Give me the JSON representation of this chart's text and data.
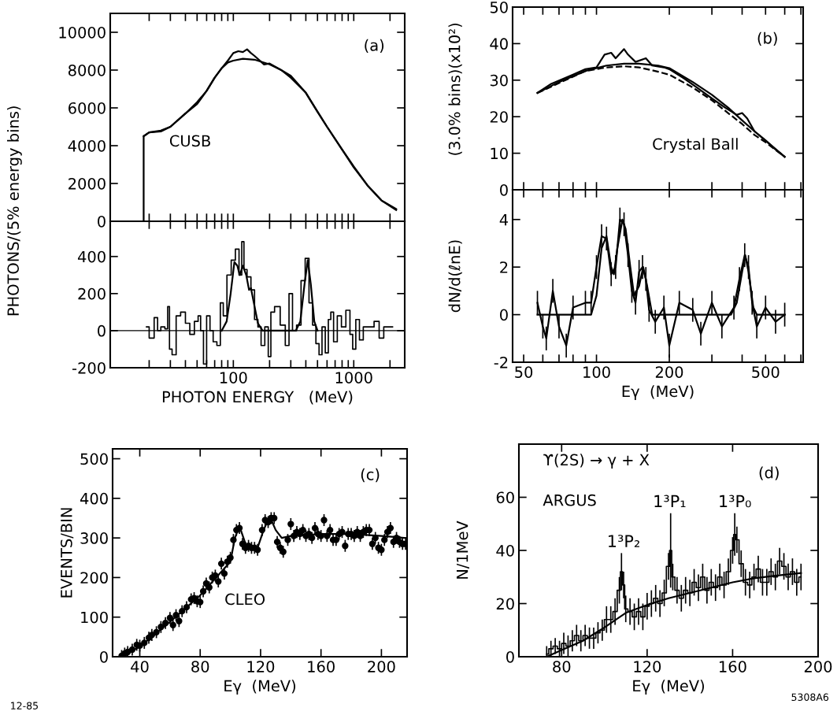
{
  "chart_data": [
    {
      "type": "line",
      "log": "x",
      "xlim": [
        9.5,
        2650
      ],
      "ylim": [
        0,
        11000
      ],
      "tick_labels": "y",
      "xticks": [
        {
          "value": 20,
          "label": null
        },
        {
          "value": 30,
          "label": null
        },
        {
          "value": 40,
          "label": null
        },
        {
          "value": 50,
          "label": null
        },
        {
          "value": 60,
          "label": null
        },
        {
          "value": 70,
          "label": null
        },
        {
          "value": 80,
          "label": null
        },
        {
          "value": 90,
          "label": null
        },
        {
          "value": 100,
          "label": null
        },
        {
          "value": 200,
          "label": null
        },
        {
          "value": 300,
          "label": null
        },
        {
          "value": 400,
          "label": null
        },
        {
          "value": 500,
          "label": null
        },
        {
          "value": 600,
          "label": null
        },
        {
          "value": 700,
          "label": null
        },
        {
          "value": 800,
          "label": null
        },
        {
          "value": 900,
          "label": null
        },
        {
          "value": 1000,
          "label": null
        },
        {
          "value": 2000,
          "label": null
        }
      ],
      "yticks": [
        0,
        2000,
        4000,
        6000,
        8000,
        10000
      ],
      "ylabel": "PHOTONS/(5% energy bins)",
      "annotations": [
        "(a)",
        "CUSB"
      ],
      "series": [
        {
          "color": "#000000",
          "x": [
            18,
            18,
            20,
            25,
            30,
            40,
            50,
            60,
            70,
            80,
            90,
            100,
            110,
            120,
            130,
            140,
            150,
            180,
            200,
            250,
            300,
            400,
            500,
            600,
            800,
            1000,
            1300,
            1700,
            2250
          ],
          "values": [
            0,
            4500,
            4700,
            4800,
            5000,
            5700,
            6200,
            6900,
            7600,
            8100,
            8500,
            8900,
            9000,
            8950,
            9100,
            8900,
            8750,
            8300,
            8350,
            8000,
            7700,
            6800,
            5800,
            5000,
            3800,
            2850,
            1900,
            1100,
            650
          ]
        },
        {
          "color": "#000000",
          "x": [
            18,
            20,
            25,
            30,
            40,
            50,
            60,
            70,
            80,
            90,
            100,
            120,
            150,
            200,
            250,
            300,
            400,
            500,
            600,
            800,
            1000,
            1300,
            1700,
            2250
          ],
          "values": [
            4500,
            4700,
            4750,
            5000,
            5700,
            6300,
            6900,
            7600,
            8100,
            8400,
            8500,
            8600,
            8550,
            8300,
            8000,
            7600,
            6800,
            5800,
            5000,
            3800,
            2900,
            1900,
            1100,
            600
          ]
        }
      ]
    },
    {
      "type": "step",
      "log": "x",
      "xlim": [
        9.5,
        2650
      ],
      "ylim": [
        -200,
        590
      ],
      "xticks": [
        {
          "value": 20,
          "label": null
        },
        {
          "value": 30,
          "label": null
        },
        {
          "value": 40,
          "label": null
        },
        {
          "value": 50,
          "label": null
        },
        {
          "value": 60,
          "label": null
        },
        {
          "value": 70,
          "label": null
        },
        {
          "value": 80,
          "label": null
        },
        {
          "value": 90,
          "label": null
        },
        100,
        {
          "value": 200,
          "label": null
        },
        {
          "value": 300,
          "label": null
        },
        {
          "value": 400,
          "label": null
        },
        {
          "value": 500,
          "label": null
        },
        {
          "value": 600,
          "label": null
        },
        {
          "value": 700,
          "label": null
        },
        {
          "value": 800,
          "label": null
        },
        {
          "value": 900,
          "label": null
        },
        1000,
        {
          "value": 2000,
          "label": null
        }
      ],
      "yticks": [
        -200,
        0,
        200,
        400
      ],
      "xlabel": "PHOTON ENERGY   (MeV)",
      "ref_lines": [
        {
          "axis": "y",
          "value": 0,
          "color": "#000000"
        }
      ],
      "series": [
        {
          "color": "#000000",
          "x": [
            19,
            21,
            23,
            24,
            26,
            28,
            29,
            30,
            32,
            35,
            38,
            42,
            45,
            50,
            52,
            55,
            58,
            62,
            66,
            70,
            76,
            80,
            85,
            92,
            100,
            108,
            115,
            120,
            125,
            135,
            145,
            155,
            165,
            175,
            190,
            200,
            210,
            230,
            260,
            280,
            300,
            320,
            350,
            380,
            410,
            440,
            470,
            500,
            530,
            560,
            600,
            630,
            660,
            700,
            760,
            820,
            900,
            960,
            1000,
            1080,
            1150,
            1250,
            1400,
            1550,
            1700,
            1850,
            2100
          ],
          "values": [
            20,
            -40,
            70,
            0,
            20,
            10,
            130,
            -100,
            -130,
            80,
            100,
            40,
            -20,
            50,
            80,
            0,
            -180,
            80,
            0,
            -60,
            -80,
            150,
            80,
            300,
            380,
            440,
            300,
            480,
            330,
            290,
            220,
            60,
            20,
            -80,
            20,
            -140,
            100,
            130,
            30,
            -80,
            200,
            0,
            30,
            270,
            390,
            150,
            30,
            -70,
            -130,
            20,
            -120,
            60,
            100,
            -60,
            80,
            20,
            110,
            -20,
            -100,
            60,
            -50,
            20,
            20,
            50,
            -40,
            20,
            20
          ]
        },
        {
          "type": "line",
          "color": "#000000",
          "x": [
            80,
            88,
            95,
            102,
            108,
            113,
            120,
            128,
            135,
            140,
            148,
            160,
            175,
            330,
            360,
            390,
            415,
            440,
            470,
            500
          ],
          "values": [
            0,
            50,
            200,
            370,
            350,
            300,
            350,
            300,
            220,
            230,
            150,
            40,
            0,
            0,
            50,
            250,
            380,
            250,
            50,
            0
          ]
        }
      ]
    },
    {
      "type": "line",
      "log": "x",
      "xlim": [
        45,
        715
      ],
      "ylim": [
        0,
        50
      ],
      "tick_labels": "y",
      "xticks": [
        {
          "value": 50,
          "label": null
        },
        {
          "value": 60,
          "label": null
        },
        {
          "value": 70,
          "label": null
        },
        {
          "value": 80,
          "label": null
        },
        {
          "value": 90,
          "label": null
        },
        {
          "value": 100,
          "label": null
        },
        {
          "value": 200,
          "label": null
        },
        {
          "value": 300,
          "label": null
        },
        {
          "value": 400,
          "label": null
        },
        {
          "value": 500,
          "label": null
        },
        {
          "value": 600,
          "label": null
        },
        {
          "value": 700,
          "label": null
        }
      ],
      "yticks": [
        0,
        10,
        20,
        30,
        40,
        50
      ],
      "ylabel": "(3.0% bins)(x10²)",
      "annotations": [
        "(b)",
        "Crystal Ball"
      ],
      "series": [
        {
          "color": "#000000",
          "x": [
            57,
            65,
            80,
            90,
            100,
            108,
            115,
            120,
            130,
            135,
            145,
            160,
            170,
            190,
            200,
            230,
            260,
            300,
            340,
            380,
            400,
            420,
            450,
            500,
            550,
            600
          ],
          "values": [
            26.5,
            29,
            31.5,
            33,
            33.5,
            37,
            37.5,
            36,
            38.5,
            37,
            35,
            36,
            34,
            33.5,
            33,
            30.5,
            28,
            25,
            22.5,
            20.5,
            21,
            19.5,
            16,
            13.5,
            11,
            9
          ]
        },
        {
          "color": "#000000",
          "x": [
            57,
            70,
            90,
            110,
            130,
            150,
            180,
            200,
            250,
            300,
            350,
            400,
            450,
            500,
            600
          ],
          "values": [
            26.5,
            29.5,
            32.5,
            34,
            34.5,
            34.5,
            34,
            33.3,
            29.5,
            26,
            22.5,
            19,
            16,
            13.5,
            9
          ]
        },
        {
          "color": "#000000",
          "line_style": "dashed",
          "x": [
            57,
            90,
            110,
            130,
            150,
            180,
            200,
            250,
            300,
            350,
            400,
            450,
            500,
            600
          ],
          "values": [
            26.5,
            32.5,
            33.5,
            33.8,
            33.5,
            32.3,
            31.5,
            28,
            24.5,
            21,
            18,
            15,
            13,
            9
          ]
        }
      ]
    },
    {
      "type": "line",
      "log": "x",
      "xlim": [
        45,
        715
      ],
      "ylim": [
        -2,
        5.25
      ],
      "xticks": [
        50,
        {
          "value": 60,
          "label": null
        },
        {
          "value": 70,
          "label": null
        },
        {
          "value": 80,
          "label": null
        },
        {
          "value": 90,
          "label": null
        },
        100,
        200,
        {
          "value": 300,
          "label": null
        },
        {
          "value": 400,
          "label": null
        },
        500,
        {
          "value": 600,
          "label": null
        },
        {
          "value": 700,
          "label": null
        }
      ],
      "yticks": [
        -2,
        0,
        2,
        4
      ],
      "ylabel": "dN/d(ℓnE)",
      "xlabel": "Eγ  (MeV)",
      "series": [
        {
          "color": "#000000",
          "x": [
            57,
            60,
            62,
            66,
            70,
            75,
            80,
            90,
            95,
            100,
            105,
            110,
            115,
            120,
            125,
            130,
            135,
            140,
            145,
            150,
            155,
            160,
            165,
            175,
            190,
            200,
            220,
            250,
            270,
            300,
            330,
            370,
            390,
            410,
            425,
            440,
            460,
            500,
            550,
            600
          ],
          "values": [
            0.5,
            -0.5,
            -1,
            1,
            -0.5,
            -1.3,
            0.3,
            0.5,
            0.5,
            2,
            3.3,
            3.2,
            1.7,
            2,
            4,
            3.8,
            2.5,
            1,
            0.5,
            1.8,
            2,
            1.5,
            0.2,
            -0.3,
            0.3,
            -1.3,
            0.5,
            0.2,
            -0.8,
            0.5,
            -0.5,
            0.3,
            1.5,
            2.5,
            2,
            0.5,
            -0.5,
            0.3,
            -0.3,
            0
          ],
          "errors": [
            0.5,
            0.5,
            0.5,
            0.5,
            0.5,
            0.5,
            0.5,
            0.5,
            0.5,
            0.5,
            0.5,
            0.5,
            0.5,
            0.5,
            0.5,
            0.5,
            0.5,
            0.5,
            0.5,
            0.5,
            0.5,
            0.5,
            0.5,
            0.5,
            0.5,
            0.5,
            0.5,
            0.5,
            0.5,
            0.5,
            0.5,
            0.5,
            0.5,
            0.5,
            0.5,
            0.5,
            0.5,
            0.5,
            0.5,
            0.5
          ]
        },
        {
          "color": "#000000",
          "x": [
            57,
            95,
            100,
            105,
            110,
            115,
            118,
            122,
            128,
            132,
            138,
            143,
            150,
            156,
            162,
            170,
            360,
            380,
            400,
            412,
            425,
            445,
            460,
            600
          ],
          "values": [
            0,
            0,
            0.8,
            2.8,
            3.3,
            2,
            1.7,
            2.8,
            4,
            3.6,
            2,
            0.8,
            1.2,
            2,
            1.2,
            0,
            0,
            0.5,
            1.8,
            2.5,
            1.8,
            0.3,
            0,
            0
          ]
        }
      ]
    },
    {
      "type": "scatter",
      "xlim": [
        22,
        217
      ],
      "ylim": [
        0,
        525
      ],
      "xticks": [
        40,
        80,
        120,
        160,
        200
      ],
      "yticks": [
        0,
        100,
        200,
        300,
        400,
        500
      ],
      "xlabel": "Eγ  (MeV)",
      "ylabel": "EVENTS/BIN",
      "annotations": [
        "(c)",
        "CLEO",
        "12-85"
      ],
      "series": [
        {
          "color": "#000000",
          "marker": "circle",
          "x": [
            28,
            30,
            32,
            35,
            38,
            40,
            43,
            46,
            48,
            51,
            54,
            57,
            60,
            62,
            64,
            66,
            68,
            71,
            74,
            76,
            78,
            80,
            82,
            84,
            86,
            88,
            90,
            92,
            94,
            96,
            98,
            100,
            102,
            104,
            106,
            108,
            110,
            112,
            114,
            116,
            118,
            121,
            123,
            125,
            127,
            129,
            131,
            133,
            135,
            138,
            140,
            142,
            144,
            146,
            148,
            150,
            152,
            154,
            156,
            158,
            160,
            162,
            164,
            166,
            168,
            170,
            172,
            174,
            176,
            178,
            180,
            182,
            184,
            186,
            188,
            190,
            192,
            194,
            196,
            198,
            200,
            202,
            204,
            206,
            208,
            210,
            212,
            214,
            216
          ],
          "values": [
            2,
            8,
            12,
            18,
            30,
            28,
            35,
            48,
            55,
            62,
            75,
            85,
            98,
            80,
            105,
            90,
            115,
            125,
            145,
            148,
            140,
            138,
            165,
            185,
            175,
            200,
            205,
            190,
            235,
            210,
            240,
            250,
            295,
            320,
            325,
            285,
            275,
            280,
            275,
            275,
            270,
            320,
            345,
            340,
            350,
            350,
            290,
            275,
            265,
            295,
            335,
            305,
            315,
            310,
            320,
            305,
            310,
            300,
            325,
            310,
            305,
            345,
            305,
            320,
            295,
            295,
            310,
            315,
            280,
            310,
            310,
            305,
            315,
            305,
            315,
            320,
            320,
            285,
            300,
            275,
            270,
            295,
            315,
            325,
            290,
            300,
            290,
            285,
            285
          ],
          "errors": [
            15,
            15,
            15,
            15,
            15,
            15,
            15,
            15,
            15,
            15,
            15,
            15,
            15,
            15,
            15,
            15,
            15,
            15,
            15,
            15,
            15,
            15,
            15,
            15,
            15,
            15,
            15,
            15,
            15,
            15,
            15,
            15,
            15,
            15,
            15,
            15,
            15,
            15,
            15,
            15,
            15,
            15,
            15,
            15,
            15,
            15,
            15,
            15,
            15,
            15,
            15,
            15,
            15,
            15,
            15,
            15,
            15,
            15,
            15,
            15,
            15,
            15,
            15,
            15,
            15,
            15,
            15,
            15,
            15,
            15,
            15,
            15,
            15,
            15,
            15,
            15,
            15,
            15,
            15,
            15,
            15,
            15,
            15,
            15,
            15,
            15,
            15,
            15,
            15
          ]
        },
        {
          "type": "line",
          "color": "#000000",
          "x": [
            27,
            40,
            60,
            80,
            100,
            103,
            106,
            110,
            115,
            118,
            122,
            126,
            130,
            134,
            140,
            160,
            180,
            200,
            216
          ],
          "values": [
            0,
            25,
            88,
            155,
            240,
            300,
            330,
            285,
            275,
            275,
            320,
            355,
            320,
            300,
            305,
            310,
            310,
            305,
            300
          ]
        }
      ]
    },
    {
      "type": "line",
      "xlim": [
        60,
        200
      ],
      "ylim": [
        0,
        80
      ],
      "xticks": [
        80,
        120,
        160,
        200
      ],
      "yticks": [
        0,
        20,
        40,
        60
      ],
      "xlabel": "Eγ  (MeV)",
      "ylabel": "N/1MeV",
      "annotations": [
        "ϒ(2S) → γ + X",
        "(d)",
        "ARGUS",
        {
          "text": "1³P₂",
          "x": 109,
          "y": 40
        },
        {
          "text": "1³P₁",
          "x": 130.5,
          "y": 55
        },
        {
          "text": "1³P₀",
          "x": 161,
          "y": 55
        },
        "5308A6"
      ],
      "series": [
        {
          "type": "step",
          "color": "#000000",
          "x": [
            73,
            75,
            77,
            79,
            81,
            83,
            85,
            87,
            89,
            91,
            93,
            95,
            97,
            99,
            101,
            103,
            105,
            107,
            108,
            109,
            110,
            112,
            114,
            116,
            118,
            120,
            122,
            124,
            126,
            128,
            130,
            131,
            132,
            134,
            136,
            138,
            140,
            142,
            144,
            146,
            148,
            150,
            152,
            154,
            156,
            158,
            160,
            161,
            162,
            164,
            166,
            168,
            170,
            172,
            174,
            176,
            178,
            180,
            182,
            184,
            186,
            188,
            190,
            192
          ],
          "values": [
            1,
            3,
            4,
            3,
            5,
            4,
            6,
            8,
            6,
            8,
            7,
            7,
            9,
            10,
            14,
            14,
            17,
            25,
            32,
            27,
            18,
            17,
            15,
            17,
            15,
            19,
            20,
            22,
            20,
            24,
            34,
            40,
            30,
            25,
            22,
            25,
            24,
            28,
            26,
            30,
            25,
            28,
            26,
            30,
            27,
            32,
            40,
            46,
            44,
            35,
            28,
            27,
            30,
            33,
            28,
            28,
            32,
            30,
            36,
            34,
            30,
            32,
            28,
            30
          ],
          "errors": [
            3,
            3,
            3,
            3,
            4,
            4,
            4,
            4,
            4,
            4,
            4,
            4,
            4,
            4,
            5,
            5,
            5,
            5,
            7,
            5,
            5,
            5,
            5,
            5,
            5,
            5,
            5,
            5,
            5,
            5,
            5,
            14,
            5,
            5,
            5,
            5,
            5,
            5,
            5,
            5,
            5,
            5,
            5,
            5,
            5,
            5,
            5,
            8,
            5,
            5,
            5,
            5,
            5,
            5,
            5,
            5,
            5,
            5,
            5,
            5,
            5,
            5,
            5,
            5
          ]
        },
        {
          "type": "line",
          "color": "#000000",
          "x": [
            73,
            80,
            90,
            100,
            110,
            120,
            130,
            140,
            150,
            160,
            170,
            180,
            192
          ],
          "values": [
            0,
            2.5,
            6,
            11,
            16.5,
            19.5,
            22,
            24,
            26,
            28,
            29.5,
            30.5,
            31.5
          ]
        }
      ]
    }
  ]
}
